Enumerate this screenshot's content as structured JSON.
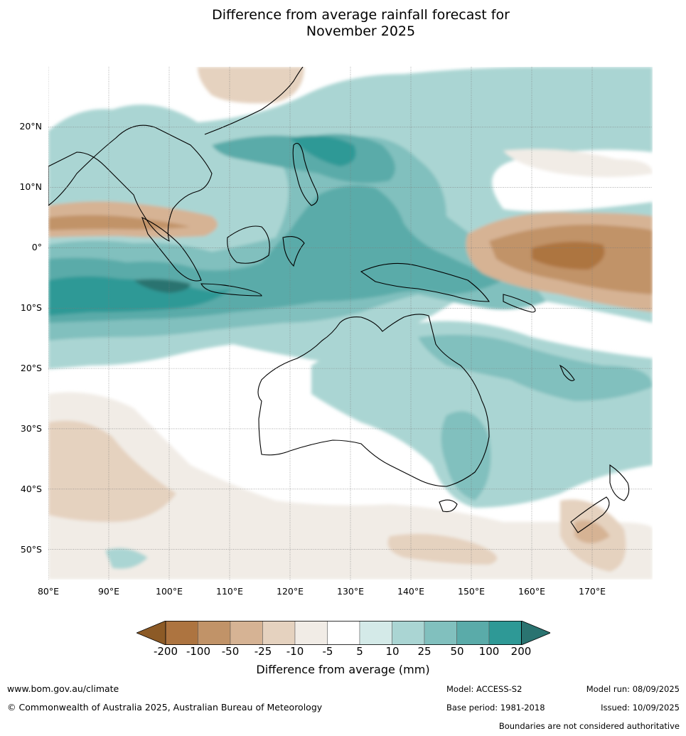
{
  "title": {
    "line1": "Difference from average rainfall forecast for",
    "line2": "November 2025"
  },
  "map": {
    "lon_range": [
      80,
      180
    ],
    "lat_range": [
      -55,
      30
    ],
    "lat_labels": [
      "20°N",
      "10°N",
      "0°",
      "10°S",
      "20°S",
      "30°S",
      "40°S",
      "50°S"
    ],
    "lat_values": [
      20,
      10,
      0,
      -10,
      -20,
      -30,
      -40,
      -50
    ],
    "lon_labels": [
      "80°E",
      "90°E",
      "100°E",
      "110°E",
      "120°E",
      "130°E",
      "140°E",
      "150°E",
      "160°E",
      "170°E"
    ],
    "lon_values": [
      80,
      90,
      100,
      110,
      120,
      130,
      140,
      150,
      160,
      170
    ],
    "grid": true
  },
  "colorbar": {
    "ticks": [
      "-200",
      "-100",
      "-50",
      "-25",
      "-10",
      "-5",
      "5",
      "10",
      "25",
      "50",
      "100",
      "200"
    ],
    "colors": [
      "#8c5a26",
      "#ad7440",
      "#c19368",
      "#d6b394",
      "#e5d2bf",
      "#f1ece6",
      "#ffffff",
      "#d4eae8",
      "#aad5d3",
      "#81c0be",
      "#5aaba9",
      "#2e9996",
      "#2a7370"
    ],
    "label": "Difference from average (mm)"
  },
  "footer": {
    "website": "www.bom.gov.au/climate",
    "copyright": "© Commonwealth of Australia 2025, Australian Bureau of Meteorology",
    "model": "Model: ACCESS-S2",
    "base_period": "Base period: 1981-2018",
    "model_run": "Model run: 08/09/2025",
    "issued": "Issued: 10/09/2025",
    "disclaimer": "Boundaries are not considered authoritative"
  }
}
